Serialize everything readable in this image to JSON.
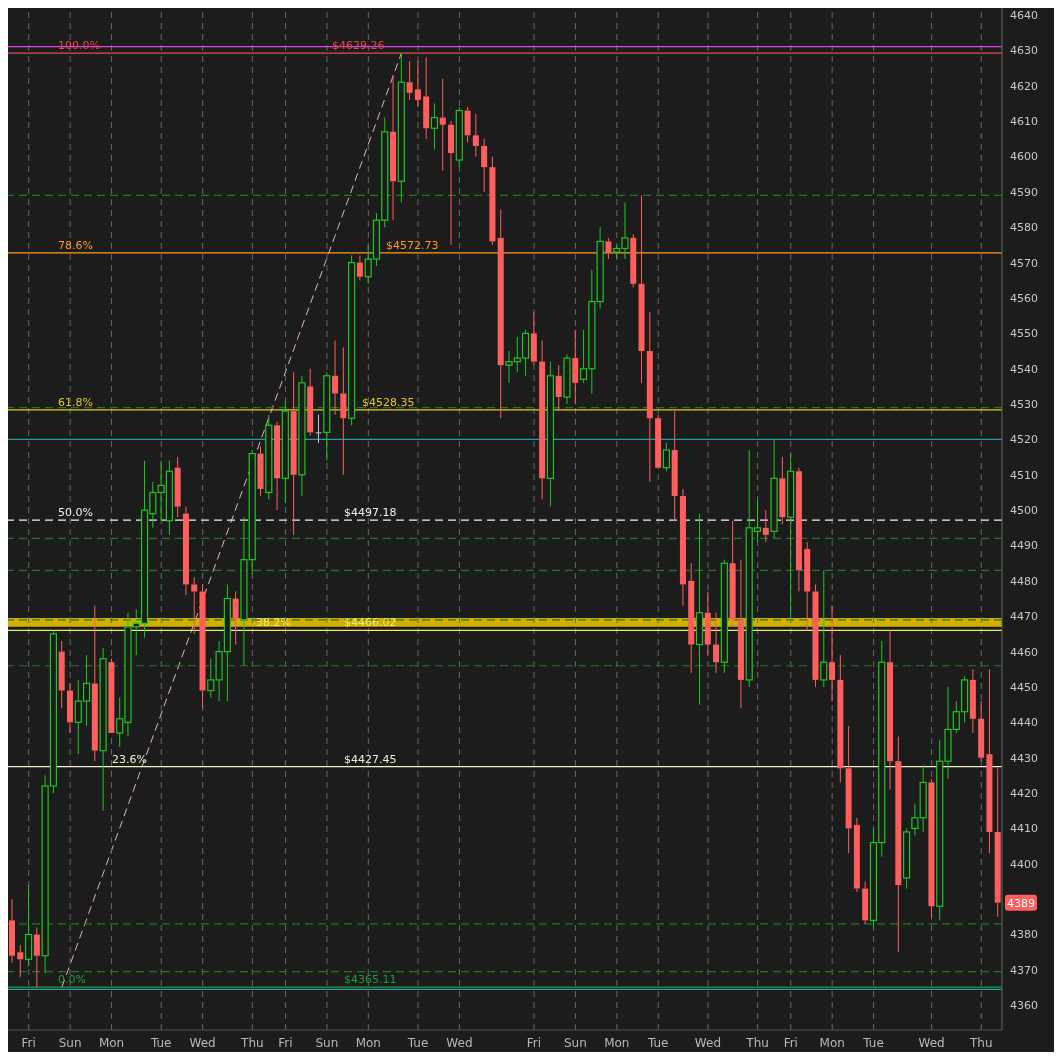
{
  "chart_data": {
    "type": "candlestick",
    "categories": [
      null,
      null,
      "Fri",
      null,
      null,
      null,
      null,
      "Sun",
      null,
      null,
      null,
      null,
      "Mon",
      null,
      null,
      null,
      null,
      null,
      "Tue",
      null,
      null,
      null,
      null,
      "Wed",
      null,
      null,
      null,
      null,
      null,
      "Thu",
      null,
      null,
      null,
      "Fri",
      null,
      null,
      null,
      null,
      "Sun",
      null,
      null,
      null,
      null,
      "Mon",
      null,
      null,
      null,
      null,
      null,
      "Tue",
      null,
      null,
      null,
      null,
      "Wed",
      null,
      null,
      null,
      null,
      null,
      null,
      null,
      null,
      "Fri",
      null,
      null,
      null,
      null,
      "Sun",
      null,
      null,
      null,
      null,
      "Mon",
      null,
      null,
      null,
      null,
      "Tue",
      null,
      null,
      null,
      null,
      null,
      "Wed",
      null,
      null,
      null,
      null,
      null,
      "Thu",
      null,
      null,
      null,
      "Fri",
      null,
      null,
      null,
      null,
      "Mon",
      null,
      null,
      null,
      null,
      "Tue",
      null,
      null,
      null,
      null,
      null,
      null,
      "Wed",
      null,
      null,
      null,
      null,
      null,
      "Thu",
      null,
      null
    ],
    "ohlc": [
      [
        4384,
        4390,
        4372,
        4374
      ],
      [
        4375,
        4377,
        4368,
        4373
      ],
      [
        4373,
        4394,
        4371,
        4380
      ],
      [
        4380,
        4382,
        4365,
        4374
      ],
      [
        4374,
        4425,
        4369,
        4422
      ],
      [
        4422,
        4466,
        4420,
        4465
      ],
      [
        4460,
        4463,
        4444,
        4449
      ],
      [
        4449,
        4451,
        4437,
        4440
      ],
      [
        4440,
        4452,
        4431,
        4446
      ],
      [
        4446,
        4459,
        4439,
        4451
      ],
      [
        4451,
        4473,
        4429,
        4432
      ],
      [
        4432,
        4461,
        4415,
        4458
      ],
      [
        4457,
        4458,
        4437,
        4437
      ],
      [
        4437,
        4447,
        4433,
        4441
      ],
      [
        4440,
        4471,
        4436,
        4467
      ],
      [
        4467,
        4472,
        4459,
        4468
      ],
      [
        4468,
        4514,
        4464,
        4500
      ],
      [
        4499,
        4508,
        4495,
        4505
      ],
      [
        4505,
        4514,
        4497,
        4507
      ],
      [
        4497,
        4514,
        4493,
        4511
      ],
      [
        4512,
        4515,
        4498,
        4501
      ],
      [
        4499,
        4501,
        4476,
        4479
      ],
      [
        4479,
        4481,
        4465,
        4477
      ],
      [
        4477,
        4479,
        4444,
        4449
      ],
      [
        4449,
        4458,
        4447,
        4452
      ],
      [
        4452,
        4463,
        4446,
        4460
      ],
      [
        4460,
        4479,
        4446,
        4475
      ],
      [
        4475,
        4477,
        4462,
        4469
      ],
      [
        4469,
        4498,
        4456,
        4486
      ],
      [
        4486,
        4517,
        4482,
        4516
      ],
      [
        4516,
        4518,
        4504,
        4506
      ],
      [
        4505,
        4527,
        4503,
        4524
      ],
      [
        4524,
        4525,
        4500,
        4509
      ],
      [
        4509,
        4531,
        4502,
        4528
      ],
      [
        4528,
        4539,
        4493,
        4510
      ],
      [
        4510,
        4538,
        4504,
        4536
      ],
      [
        4535,
        4540,
        4521,
        4522
      ],
      [
        4522,
        4527,
        4519,
        4522
      ],
      [
        4522,
        4539,
        4514,
        4538
      ],
      [
        4538,
        4548,
        4527,
        4533
      ],
      [
        4533,
        4546,
        4510,
        4526
      ],
      [
        4526,
        4572,
        4524,
        4570
      ],
      [
        4570,
        4572,
        4565,
        4566
      ],
      [
        4566,
        4575,
        4564,
        4571
      ],
      [
        4571,
        4584,
        4569,
        4582
      ],
      [
        4582,
        4611,
        4580,
        4607
      ],
      [
        4607,
        4623,
        4582,
        4593
      ],
      [
        4593,
        4629.26,
        4587,
        4621
      ],
      [
        4621,
        4627,
        4616,
        4618
      ],
      [
        4619,
        4627,
        4614,
        4616
      ],
      [
        4617,
        4628,
        4605,
        4608
      ],
      [
        4608,
        4615,
        4602,
        4611
      ],
      [
        4611,
        4622,
        4596,
        4609
      ],
      [
        4609,
        4610,
        4575,
        4601
      ],
      [
        4599,
        4614,
        4597,
        4613
      ],
      [
        4613,
        4614,
        4604,
        4606
      ],
      [
        4606,
        4612,
        4600,
        4603
      ],
      [
        4603,
        4605,
        4590,
        4597
      ],
      [
        4597,
        4600,
        4575,
        4576
      ],
      [
        4577,
        4585,
        4526,
        4541
      ],
      [
        4541,
        4545,
        4536,
        4542
      ],
      [
        4542,
        4549,
        4539,
        4543
      ],
      [
        4543,
        4551,
        4538,
        4550
      ],
      [
        4550,
        4556,
        4541,
        4542
      ],
      [
        4542,
        4548,
        4503,
        4509
      ],
      [
        4509,
        4542,
        4501,
        4538
      ],
      [
        4538,
        4541,
        4528,
        4532
      ],
      [
        4532,
        4544,
        4530,
        4543
      ],
      [
        4543,
        4551,
        4530,
        4536
      ],
      [
        4537,
        4551,
        4536,
        4540
      ],
      [
        4540,
        4568,
        4533,
        4559
      ],
      [
        4559,
        4580,
        4557,
        4576
      ],
      [
        4576,
        4577,
        4571,
        4573
      ],
      [
        4573,
        4575,
        4571,
        4574
      ],
      [
        4574,
        4587,
        4571,
        4577
      ],
      [
        4577,
        4578,
        4563,
        4564
      ],
      [
        4564,
        4589,
        4536,
        4545
      ],
      [
        4545,
        4556,
        4508,
        4526
      ],
      [
        4526,
        4527,
        4512,
        4512
      ],
      [
        4512,
        4519,
        4511,
        4517
      ],
      [
        4517,
        4528,
        4497,
        4504
      ],
      [
        4504,
        4506,
        4473,
        4479
      ],
      [
        4480,
        4485,
        4454,
        4462
      ],
      [
        4462,
        4499,
        4445,
        4471
      ],
      [
        4471,
        4477,
        4459,
        4462
      ],
      [
        4462,
        4471,
        4454,
        4457
      ],
      [
        4457,
        4486,
        4454,
        4485
      ],
      [
        4485,
        4497,
        4467,
        4469
      ],
      [
        4469,
        4486,
        4444,
        4452
      ],
      [
        4452,
        4517,
        4450,
        4495
      ],
      [
        4494,
        4503,
        4491,
        4495
      ],
      [
        4495,
        4500,
        4491,
        4493
      ],
      [
        4494,
        4520,
        4492,
        4509
      ],
      [
        4509,
        4515,
        4496,
        4498
      ],
      [
        4498,
        4516,
        4469,
        4511
      ],
      [
        4511,
        4512,
        4477,
        4483
      ],
      [
        4489,
        4491,
        4466,
        4477
      ],
      [
        4477,
        4479,
        4450,
        4452
      ],
      [
        4452,
        4483,
        4450,
        4457
      ],
      [
        4457,
        4473,
        4446,
        4452
      ],
      [
        4452,
        4459,
        4423,
        4427
      ],
      [
        4427,
        4439,
        4403,
        4410
      ],
      [
        4411,
        4413,
        4392,
        4393
      ],
      [
        4393,
        4395,
        4383,
        4384
      ],
      [
        4384,
        4410,
        4382,
        4406
      ],
      [
        4406,
        4463,
        4402,
        4457
      ],
      [
        4457,
        4466,
        4421,
        4429
      ],
      [
        4429,
        4436,
        4375,
        4394
      ],
      [
        4396,
        4410,
        4393,
        4409
      ],
      [
        4410,
        4417,
        4408,
        4413
      ],
      [
        4413,
        4428,
        4409,
        4423
      ],
      [
        4423,
        4424,
        4385,
        4388
      ],
      [
        4388,
        4435,
        4384,
        4429
      ],
      [
        4429,
        4450,
        4424,
        4438
      ],
      [
        4438,
        4446,
        4437,
        4443
      ],
      [
        4443,
        4453,
        4440,
        4452
      ],
      [
        4452,
        4455,
        4437,
        4441
      ],
      [
        4441,
        4446,
        4429,
        4430
      ],
      [
        4431,
        4455,
        4403,
        4409
      ],
      [
        4409,
        4427,
        4385,
        4389
      ]
    ],
    "colors": [
      "#ff5e5e",
      "#ff5e5e",
      "#1ec81e",
      "#ff5e5e",
      "#1ec81e",
      "#1ec81e",
      "#ff5e5e",
      "#ff5e5e",
      "#1ec81e",
      "#1ec81e",
      "#ff5e5e",
      "#1ec81e",
      "#ff5e5e",
      "#1ec81e",
      "#1ec81e",
      "#1ec81e",
      "#1ec81e",
      "#1ec81e",
      "#1ec81e",
      "#1ec81e",
      "#ff5e5e",
      "#ff5e5e",
      "#ff5e5e",
      "#ff5e5e",
      "#1ec81e",
      "#1ec81e",
      "#1ec81e",
      "#ff5e5e",
      "#1ec81e",
      "#1ec81e",
      "#ff5e5e",
      "#1ec81e",
      "#ff5e5e",
      "#1ec81e",
      "#ff5e5e",
      "#1ec81e",
      "#ff5e5e",
      "#c8c8c8",
      "#1ec81e",
      "#ff5e5e",
      "#ff5e5e",
      "#1ec81e",
      "#ff5e5e",
      "#1ec81e",
      "#1ec81e",
      "#1ec81e",
      "#ff5e5e",
      "#1ec81e",
      "#ff5e5e",
      "#ff5e5e",
      "#ff5e5e",
      "#1ec81e",
      "#ff5e5e",
      "#ff5e5e",
      "#1ec81e",
      "#ff5e5e",
      "#ff5e5e",
      "#ff5e5e",
      "#ff5e5e",
      "#ff5e5e",
      "#1ec81e",
      "#1ec81e",
      "#1ec81e",
      "#ff5e5e",
      "#ff5e5e",
      "#1ec81e",
      "#ff5e5e",
      "#1ec81e",
      "#ff5e5e",
      "#1ec81e",
      "#1ec81e",
      "#1ec81e",
      "#ff5e5e",
      "#1ec81e",
      "#1ec81e",
      "#ff5e5e",
      "#ff5e5e",
      "#ff5e5e",
      "#ff5e5e",
      "#1ec81e",
      "#ff5e5e",
      "#ff5e5e",
      "#ff5e5e",
      "#1ec81e",
      "#ff5e5e",
      "#ff5e5e",
      "#1ec81e",
      "#ff5e5e",
      "#ff5e5e",
      "#1ec81e",
      "#1ec81e",
      "#ff5e5e",
      "#1ec81e",
      "#ff5e5e",
      "#1ec81e",
      "#ff5e5e",
      "#ff5e5e",
      "#ff5e5e",
      "#1ec81e",
      "#ff5e5e",
      "#ff5e5e",
      "#ff5e5e",
      "#ff5e5e",
      "#ff5e5e",
      "#1ec81e",
      "#1ec81e",
      "#ff5e5e",
      "#ff5e5e",
      "#1ec81e",
      "#1ec81e",
      "#1ec81e",
      "#ff5e5e",
      "#1ec81e",
      "#1ec81e",
      "#1ec81e",
      "#1ec81e",
      "#ff5e5e",
      "#ff5e5e",
      "#ff5e5e",
      "#ff5e5e"
    ],
    "series": [
      {
        "type": "line",
        "color": "#e8b4b4",
        "line_style": "dashed",
        "values": [
          null,
          null,
          null,
          null,
          null,
          null,
          4365.11,
          null,
          null,
          null,
          null,
          null,
          null,
          null,
          null,
          null,
          null,
          null,
          null,
          null,
          null,
          null,
          null,
          null,
          null,
          null,
          null,
          null,
          null,
          null,
          null,
          null,
          null,
          null,
          null,
          null,
          null,
          null,
          null,
          null,
          null,
          null,
          null,
          null,
          null,
          null,
          null,
          4629.26,
          null,
          null,
          null,
          null,
          null,
          null,
          null,
          null,
          null,
          null,
          null,
          null,
          null,
          null,
          null,
          null,
          null,
          null,
          null,
          null,
          null,
          null,
          null,
          null,
          null,
          null,
          null,
          null,
          null,
          null,
          null,
          null,
          null,
          null,
          null,
          null,
          null,
          null,
          null,
          null,
          null,
          null,
          null,
          null,
          null,
          null,
          null,
          null,
          null,
          null,
          null,
          null,
          null,
          null,
          null,
          null,
          null,
          null,
          null,
          null,
          null,
          null,
          null,
          null,
          null,
          null,
          null,
          null,
          null,
          null,
          null,
          null
        ]
      }
    ],
    "ylim": [
      4353,
      4642
    ],
    "yticks": [
      4360,
      4370,
      4380,
      4400,
      4410,
      4420,
      4430,
      4440,
      4450,
      4460,
      4470,
      4480,
      4490,
      4500,
      4510,
      4520,
      4530,
      4540,
      4550,
      4560,
      4570,
      4580,
      4590,
      4600,
      4610,
      4620,
      4630,
      4640
    ],
    "grid": "x",
    "ref_lines": [
      {
        "axis": "y",
        "value": 4631.1,
        "color": "#e040e0"
      },
      {
        "axis": "y",
        "value": 4629.26,
        "label": "$4629.26",
        "color": "#e84848"
      },
      {
        "axis": "y",
        "value": 4572.73,
        "label": "$4572.73",
        "color": "#ff9a1a"
      },
      {
        "axis": "y",
        "value": 4528.35,
        "label": "$4528.35",
        "color": "#e8c81a"
      },
      {
        "axis": "y",
        "value": 4497.18,
        "label": "$4497.18",
        "color": "#f0f0f0",
        "line_style": "dashed"
      },
      {
        "axis": "y",
        "value": 4466.02,
        "label": "$4466.02",
        "color": "#f0e878"
      },
      {
        "axis": "y",
        "value": 4427.45,
        "label": "$4427.45",
        "color": "#f0f0d0"
      },
      {
        "axis": "y",
        "value": 4365.11,
        "label": "$4365.11",
        "color": "#1e9e3e"
      },
      {
        "axis": "y",
        "value": 4520,
        "color": "#1fa0a8"
      },
      {
        "axis": "y",
        "value": 4364.5,
        "color": "#1fa0a8"
      },
      {
        "axis": "y",
        "value": 4589,
        "color": "#1e7a1e",
        "line_style": "dashed"
      },
      {
        "axis": "y",
        "value": 4529,
        "color": "#1e7a1e",
        "line_style": "dashed"
      },
      {
        "axis": "y",
        "value": 4492,
        "color": "#1e7a1e",
        "line_style": "dashed"
      },
      {
        "axis": "y",
        "value": 4483,
        "color": "#1e7a1e",
        "line_style": "dashed"
      },
      {
        "axis": "y",
        "value": 4469,
        "color": "#1e7a1e",
        "line_style": "dashed"
      },
      {
        "axis": "y",
        "value": 4456,
        "color": "#1e7a1e",
        "line_style": "dashed"
      },
      {
        "axis": "y",
        "value": 4383,
        "color": "#1e7a1e",
        "line_style": "dashed"
      },
      {
        "axis": "y",
        "value": 4369.5,
        "color": "#1e7a1e",
        "line_style": "dashed"
      }
    ],
    "bands": [
      {
        "axis": "y",
        "from": 4467,
        "to": 4469.5,
        "color": "#e6c000"
      }
    ],
    "annotations": [
      {
        "text": "100.0%",
        "y": 4629.26
      },
      {
        "text": "78.6%",
        "y": 4572.73
      },
      {
        "text": "61.8%",
        "y": 4528.35
      },
      {
        "text": "50.0%",
        "y": 4497.18
      },
      {
        "text": "38.2%",
        "y": 4466.02
      },
      {
        "text": "23.6%",
        "y": 4427.45
      },
      {
        "text": "0.0%",
        "y": 4365.11
      },
      {
        "text": "4389",
        "y": 4389
      }
    ]
  }
}
